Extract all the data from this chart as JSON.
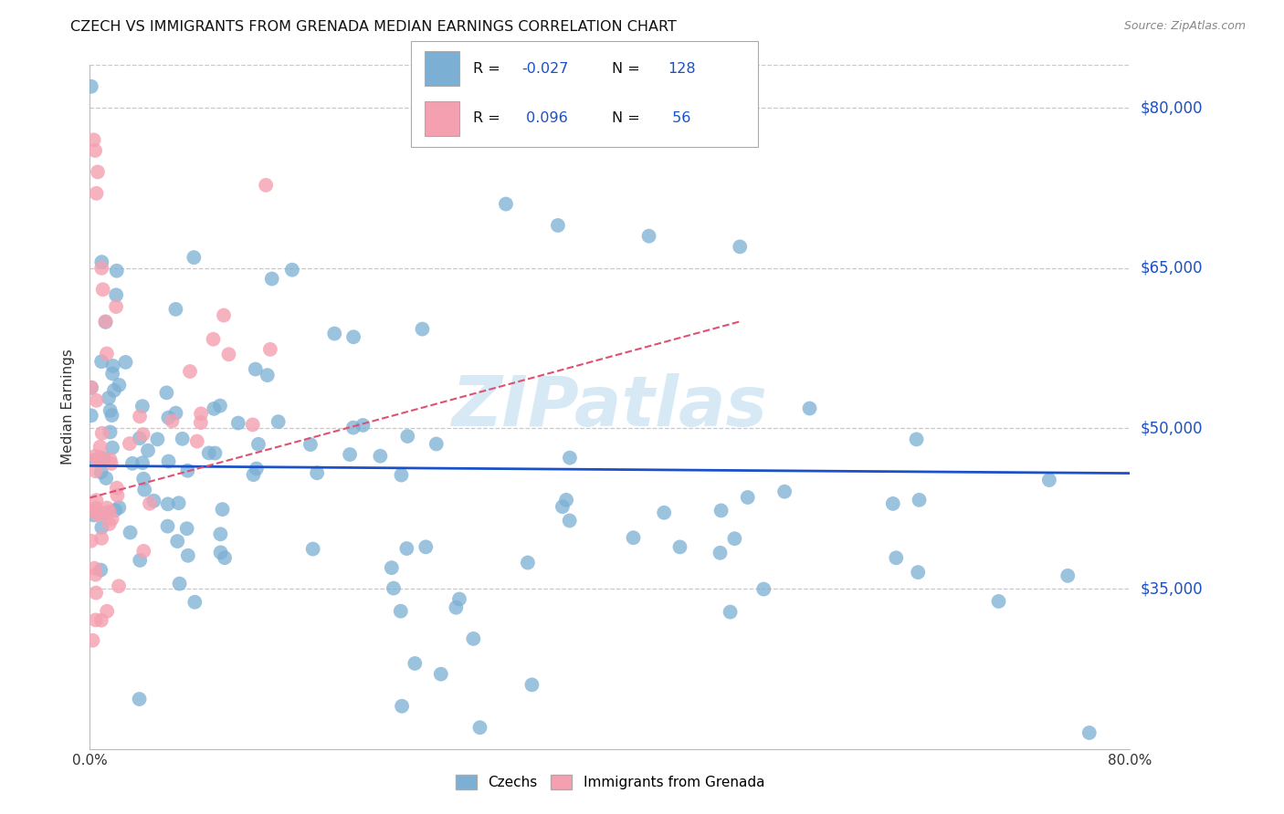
{
  "title": "CZECH VS IMMIGRANTS FROM GRENADA MEDIAN EARNINGS CORRELATION CHART",
  "source": "Source: ZipAtlas.com",
  "ylabel_label": "Median Earnings",
  "ytick_labels": [
    "$35,000",
    "$50,000",
    "$65,000",
    "$80,000"
  ],
  "ytick_vals": [
    35000,
    50000,
    65000,
    80000
  ],
  "xmin": 0.0,
  "xmax": 0.8,
  "ymin": 20000,
  "ymax": 84000,
  "legend1_R": "-0.027",
  "legend1_N": "128",
  "legend2_R": "0.096",
  "legend2_N": "56",
  "blue_color": "#7bafd4",
  "pink_color": "#f4a0b0",
  "line_blue_color": "#1a50c8",
  "line_pink_color": "#e05070",
  "watermark": "ZIPatlas",
  "watermark_color": "#b8d8f0",
  "background_color": "#ffffff",
  "grid_color": "#c8c8c8",
  "title_color": "#111111",
  "axis_label_color": "#333333",
  "ytick_label_color": "#1a50c8",
  "title_fontsize": 11.5,
  "source_fontsize": 9,
  "legend_text_color": "#111111"
}
